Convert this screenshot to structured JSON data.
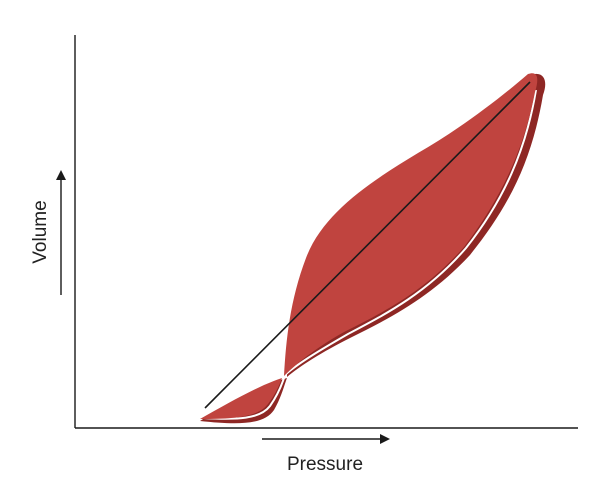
{
  "labels": {
    "x_axis": "Pressure",
    "y_axis": "Volume"
  },
  "colors": {
    "loop_fill": "#c0443f",
    "loop_edge": "#8e2724",
    "axis": "#1a1a1a"
  }
}
